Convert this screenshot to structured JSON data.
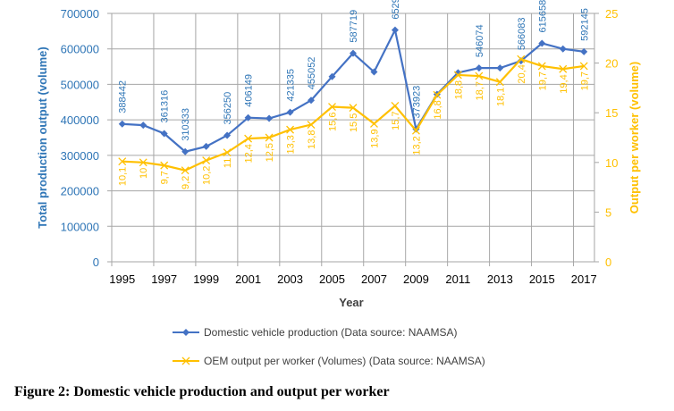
{
  "chart_data": {
    "type": "line",
    "xlabel": "Year",
    "ylabel": "Total production output (volume)",
    "y2label": "Output per worker (volume)",
    "categories": [
      "1995",
      "1996",
      "1997",
      "1998",
      "1999",
      "2000",
      "2001",
      "2002",
      "2003",
      "2004",
      "2005",
      "2006",
      "2007",
      "2008",
      "2009",
      "2010",
      "2011",
      "2012",
      "2013",
      "2014",
      "2015",
      "2016",
      "2017"
    ],
    "x_tick_labels": [
      "1995",
      "1997",
      "1999",
      "2001",
      "2003",
      "2005",
      "2007",
      "2009",
      "2011",
      "2013",
      "2015",
      "2017"
    ],
    "ylim": [
      0,
      700000
    ],
    "y_ticks": [
      "0",
      "100000",
      "200000",
      "300000",
      "400000",
      "500000",
      "600000",
      "700000"
    ],
    "y2lim": [
      0,
      25
    ],
    "y2_ticks": [
      "0",
      "5",
      "10",
      "15",
      "20",
      "25"
    ],
    "grid": true,
    "legend_position": "bottom",
    "series": [
      {
        "name": "Domestic vehicle production (Data source: NAAMSA)",
        "axis": "left",
        "color": "#4472C4",
        "marker": "diamond",
        "values": [
          388442,
          385000,
          361316,
          310333,
          325000,
          356250,
          406149,
          404000,
          421335,
          455052,
          522000,
          587719,
          535000,
          652965,
          373923,
          472000,
          533000,
          546074,
          546000,
          566083,
          615658,
          600000,
          592145
        ],
        "labels": [
          "388442",
          null,
          "361316",
          "310333",
          null,
          "356250",
          "406149",
          null,
          "421335",
          "455052",
          null,
          "587719",
          null,
          "652965",
          "373923",
          null,
          null,
          "546074",
          null,
          "566083",
          "615658",
          null,
          "592145"
        ]
      },
      {
        "name": "OEM output per worker (Volumes) (Data source: NAAMSA)",
        "axis": "right",
        "color": "#FFC000",
        "marker": "x",
        "values": [
          10.1,
          10,
          9.7,
          9.2,
          10.2,
          11,
          12.4,
          12.5,
          13.3,
          13.8,
          15.6,
          15.5,
          13.9,
          15.7,
          13.2,
          16.8,
          18.8,
          18.7,
          18.1,
          20.4,
          19.7,
          19.4,
          19.7
        ],
        "labels": [
          "10,1",
          "10",
          "9,7",
          "9,2",
          "10,2",
          "11",
          "12,4",
          "12,5",
          "13,3",
          "13,8",
          "15,6",
          "15,5",
          "13,9",
          "15,7",
          "13,2",
          "16,8",
          "18,8",
          "18,7",
          "18,1",
          "20,4",
          "19,7",
          "19,4",
          "19,7"
        ]
      }
    ]
  },
  "caption": "Figure 2: Domestic vehicle production and output per worker"
}
